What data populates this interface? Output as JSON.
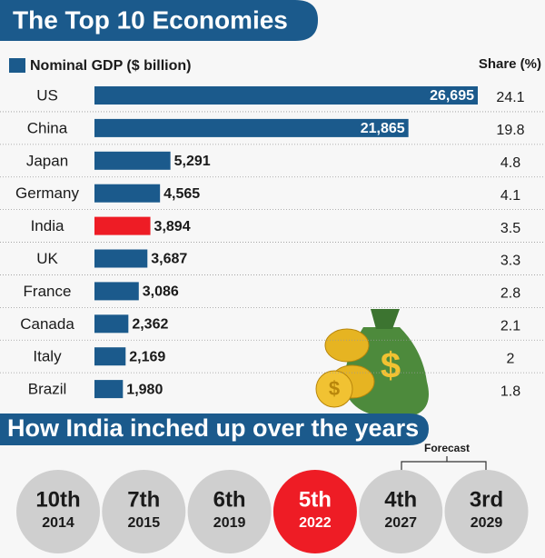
{
  "chart_data": {
    "type": "bar",
    "title": "The Top 10 Economies",
    "legend_label": "Nominal GDP ($ billion)",
    "share_header": "Share (%)",
    "categories": [
      "US",
      "China",
      "Japan",
      "Germany",
      "India",
      "UK",
      "France",
      "Canada",
      "Italy",
      "Brazil"
    ],
    "values": [
      26695,
      21865,
      5291,
      4565,
      3894,
      3687,
      3086,
      2362,
      2169,
      1980
    ],
    "value_labels": [
      "26,695",
      "21,865",
      "5,291",
      "4,565",
      "3,894",
      "3,687",
      "3,086",
      "2,362",
      "2,169",
      "1,980"
    ],
    "shares": [
      24.1,
      19.8,
      4.8,
      4.1,
      3.5,
      3.3,
      2.8,
      2.1,
      2,
      1.8
    ],
    "color": "#1b5a8c",
    "colors": [
      "#1b5a8c",
      "#1b5a8c",
      "#1b5a8c",
      "#1b5a8c",
      "#ee1c25",
      "#1b5a8c",
      "#1b5a8c",
      "#1b5a8c",
      "#1b5a8c",
      "#1b5a8c"
    ]
  },
  "rankings": {
    "title": "How India inched up over the years",
    "forecast_label": "Forecast",
    "items": [
      {
        "rank": "10th",
        "year": "2014",
        "color": "#cfcfcf"
      },
      {
        "rank": "7th",
        "year": "2015",
        "color": "#cfcfcf"
      },
      {
        "rank": "6th",
        "year": "2019",
        "color": "#cfcfcf"
      },
      {
        "rank": "5th",
        "year": "2022",
        "color": "#ee1c25"
      },
      {
        "rank": "4th",
        "year": "2027",
        "color": "#cfcfcf"
      },
      {
        "rank": "3rd",
        "year": "2029",
        "color": "#cfcfcf"
      }
    ]
  }
}
